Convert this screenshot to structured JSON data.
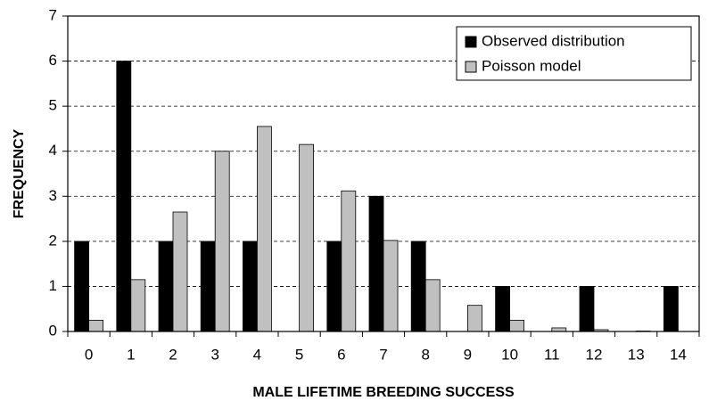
{
  "chart_data": {
    "type": "bar",
    "xlabel": "MALE LIFETIME BREEDING SUCCESS",
    "ylabel": "FREQUENCY",
    "categories": [
      "0",
      "1",
      "2",
      "3",
      "4",
      "5",
      "6",
      "7",
      "8",
      "9",
      "10",
      "11",
      "12",
      "13",
      "14"
    ],
    "series": [
      {
        "name": "Observed distribution",
        "color": "#000000",
        "values": [
          2,
          6,
          2,
          2,
          2,
          0,
          2,
          3,
          2,
          0,
          1,
          0,
          1,
          0,
          1
        ]
      },
      {
        "name": "Poisson model",
        "color": "#c0c0c0",
        "values": [
          0.25,
          1.15,
          2.65,
          4.0,
          4.55,
          4.15,
          3.12,
          2.02,
          1.15,
          0.58,
          0.25,
          0.08,
          0.04,
          0.01,
          0
        ]
      }
    ],
    "ylim": [
      0,
      7
    ],
    "yticks": [
      0,
      1,
      2,
      3,
      4,
      5,
      6,
      7
    ],
    "grid": true,
    "legend": "upper right"
  }
}
